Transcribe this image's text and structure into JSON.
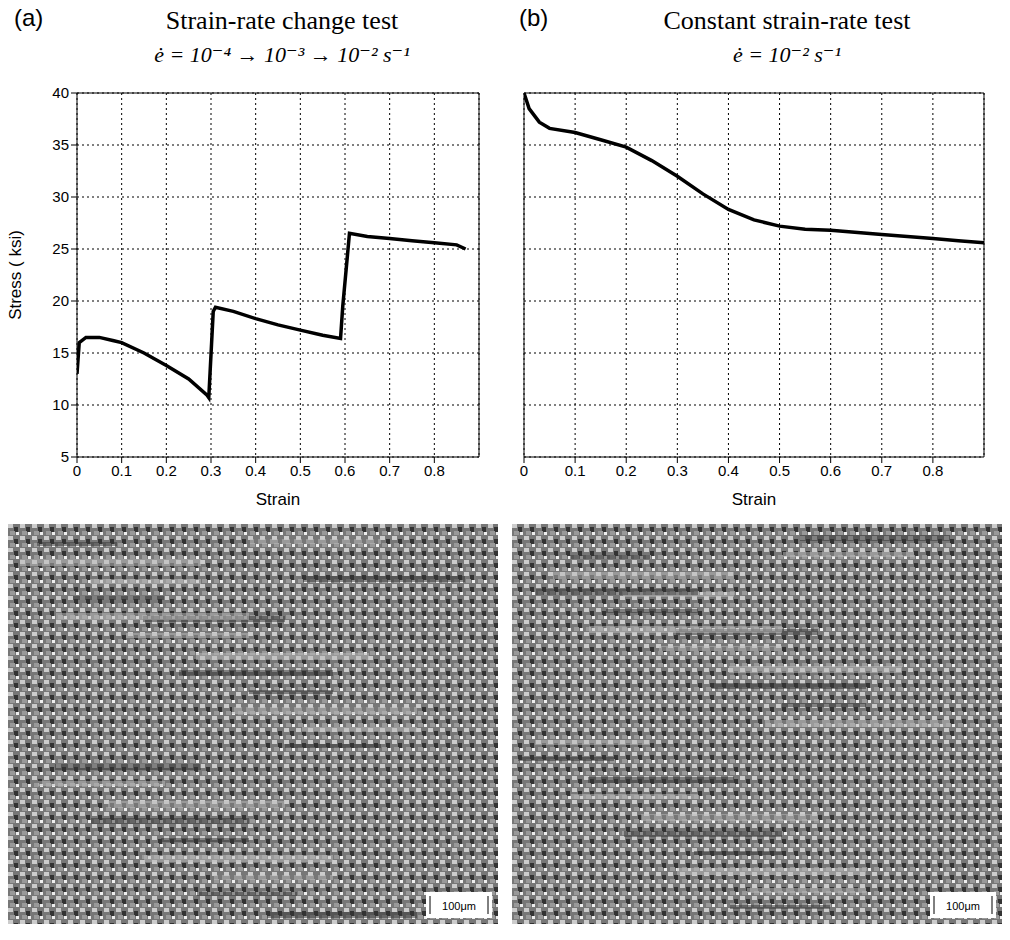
{
  "chart_data": [
    {
      "type": "line",
      "label": "(a)",
      "title": "Strain-rate change test",
      "subtitle": "ė = 10⁻⁴ → 10⁻³ → 10⁻² s⁻¹",
      "x_label": "Strain",
      "y_label": "Stress ( ksi)",
      "x": [
        0,
        0.005,
        0.02,
        0.05,
        0.08,
        0.1,
        0.15,
        0.2,
        0.25,
        0.29,
        0.295,
        0.305,
        0.31,
        0.35,
        0.4,
        0.45,
        0.5,
        0.55,
        0.59,
        0.595,
        0.61,
        0.65,
        0.7,
        0.75,
        0.8,
        0.85,
        0.87
      ],
      "values": [
        13,
        16,
        16.5,
        16.5,
        16.2,
        16,
        15,
        13.8,
        12.5,
        11,
        10.7,
        19,
        19.4,
        19,
        18.3,
        17.7,
        17.2,
        16.7,
        16.4,
        19.5,
        26.5,
        26.2,
        26,
        25.8,
        25.6,
        25.4,
        25
      ],
      "color": "#000000",
      "xlim": [
        0,
        0.9
      ],
      "xticks": [
        0,
        0.1,
        0.2,
        0.3,
        0.4,
        0.5,
        0.6,
        0.7,
        0.8
      ],
      "ylim": [
        5,
        40
      ],
      "yticks": [
        5,
        10,
        15,
        20,
        25,
        30,
        35,
        40
      ],
      "grid": true
    },
    {
      "type": "line",
      "label": "(b)",
      "title": "Constant strain-rate test",
      "subtitle": "ė = 10⁻² s⁻¹",
      "x_label": "Strain",
      "x": [
        0,
        0.01,
        0.03,
        0.05,
        0.1,
        0.15,
        0.2,
        0.25,
        0.3,
        0.35,
        0.4,
        0.45,
        0.5,
        0.55,
        0.6,
        0.7,
        0.8,
        0.85,
        0.9
      ],
      "values": [
        40,
        38.5,
        37.2,
        36.6,
        36.2,
        35.5,
        34.8,
        33.5,
        32,
        30.3,
        28.8,
        27.8,
        27.2,
        26.9,
        26.8,
        26.4,
        26,
        25.8,
        25.6
      ],
      "color": "#000000",
      "xlim": [
        0,
        0.9
      ],
      "xticks": [
        0,
        0.1,
        0.2,
        0.3,
        0.4,
        0.5,
        0.6,
        0.7,
        0.8
      ],
      "ylim": [
        5,
        40
      ],
      "yticks": [
        5,
        10,
        15,
        20,
        25,
        30,
        35,
        40
      ],
      "grid": true,
      "tick_labels": "x"
    }
  ],
  "micrographs": [
    {
      "scale_bar": "100μm"
    },
    {
      "scale_bar": "100μm"
    }
  ]
}
